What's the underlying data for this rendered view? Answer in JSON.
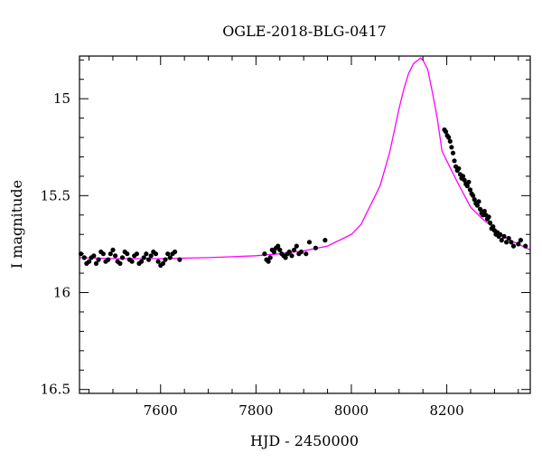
{
  "chart_data": {
    "type": "scatter",
    "title": "OGLE-2018-BLG-0417",
    "xlabel": "HJD - 2450000",
    "ylabel": "I magnitude",
    "xlim": [
      7430,
      8375
    ],
    "ylim": [
      16.52,
      14.78
    ],
    "y_inverted": true,
    "x_ticks": [
      7600,
      7800,
      8000,
      8200
    ],
    "y_ticks": [
      15,
      15.5,
      16,
      16.5
    ],
    "grid": false,
    "colors": {
      "model": "#ff00ff",
      "points": "#000000"
    },
    "model": {
      "name": "",
      "x": [
        7430,
        7500,
        7600,
        7700,
        7750,
        7800,
        7850,
        7900,
        7950,
        8000,
        8020,
        8040,
        8060,
        8080,
        8100,
        8110,
        8120,
        8130,
        8140,
        8145,
        8150,
        8160,
        8170,
        8180,
        8190,
        8200,
        8220,
        8250,
        8275,
        8300,
        8325,
        8350,
        8375
      ],
      "y": [
        15.82,
        15.825,
        15.825,
        15.82,
        15.815,
        15.81,
        15.8,
        15.785,
        15.76,
        15.7,
        15.65,
        15.55,
        15.45,
        15.28,
        15.05,
        14.95,
        14.87,
        14.82,
        14.8,
        14.79,
        14.8,
        14.85,
        14.97,
        15.1,
        15.27,
        15.32,
        15.42,
        15.56,
        15.62,
        15.67,
        15.72,
        15.75,
        15.78
      ]
    },
    "series": [
      {
        "name": "",
        "x": [
          7433,
          7440,
          7445,
          7450,
          7455,
          7460,
          7465,
          7470,
          7475,
          7480,
          7485,
          7490,
          7495,
          7500,
          7505,
          7510,
          7515,
          7520,
          7525,
          7530,
          7535,
          7540,
          7545,
          7550,
          7555,
          7560,
          7565,
          7570,
          7575,
          7580,
          7585,
          7590,
          7595,
          7600,
          7605,
          7610,
          7615,
          7620,
          7625,
          7630,
          7640,
          7818,
          7822,
          7826,
          7830,
          7834,
          7838,
          7842,
          7846,
          7850,
          7854,
          7858,
          7862,
          7866,
          7870,
          7875,
          7880,
          7885,
          7890,
          7895,
          7905,
          7912,
          7925,
          7945,
          8195,
          8198,
          8201,
          8204,
          8207,
          8210,
          8213,
          8216,
          8219,
          8222,
          8225,
          8228,
          8231,
          8234,
          8237,
          8240,
          8243,
          8246,
          8249,
          8252,
          8255,
          8258,
          8261,
          8264,
          8267,
          8270,
          8273,
          8276,
          8279,
          8282,
          8285,
          8288,
          8291,
          8294,
          8297,
          8300,
          8303,
          8306,
          8309,
          8312,
          8315,
          8320,
          8325,
          8330,
          8335,
          8340,
          8350,
          8355,
          8365
        ],
        "y": [
          15.8,
          15.82,
          15.85,
          15.84,
          15.82,
          15.81,
          15.85,
          15.83,
          15.79,
          15.8,
          15.84,
          15.83,
          15.8,
          15.78,
          15.81,
          15.84,
          15.85,
          15.82,
          15.79,
          15.8,
          15.83,
          15.84,
          15.81,
          15.8,
          15.85,
          15.84,
          15.82,
          15.8,
          15.83,
          15.81,
          15.79,
          15.8,
          15.84,
          15.86,
          15.85,
          15.83,
          15.8,
          15.82,
          15.8,
          15.79,
          15.83,
          15.8,
          15.83,
          15.84,
          15.82,
          15.78,
          15.79,
          15.77,
          15.76,
          15.78,
          15.8,
          15.81,
          15.82,
          15.8,
          15.79,
          15.81,
          15.78,
          15.76,
          15.8,
          15.79,
          15.8,
          15.74,
          15.77,
          15.73,
          15.16,
          15.17,
          15.19,
          15.2,
          15.22,
          15.25,
          15.28,
          15.32,
          15.35,
          15.37,
          15.36,
          15.39,
          15.41,
          15.4,
          15.42,
          15.44,
          15.45,
          15.43,
          15.47,
          15.49,
          15.5,
          15.52,
          15.54,
          15.55,
          15.53,
          15.57,
          15.59,
          15.6,
          15.58,
          15.6,
          15.62,
          15.61,
          15.64,
          15.67,
          15.66,
          15.68,
          15.7,
          15.69,
          15.71,
          15.7,
          15.73,
          15.71,
          15.74,
          15.72,
          15.74,
          15.76,
          15.75,
          15.73,
          15.76
        ]
      }
    ]
  }
}
